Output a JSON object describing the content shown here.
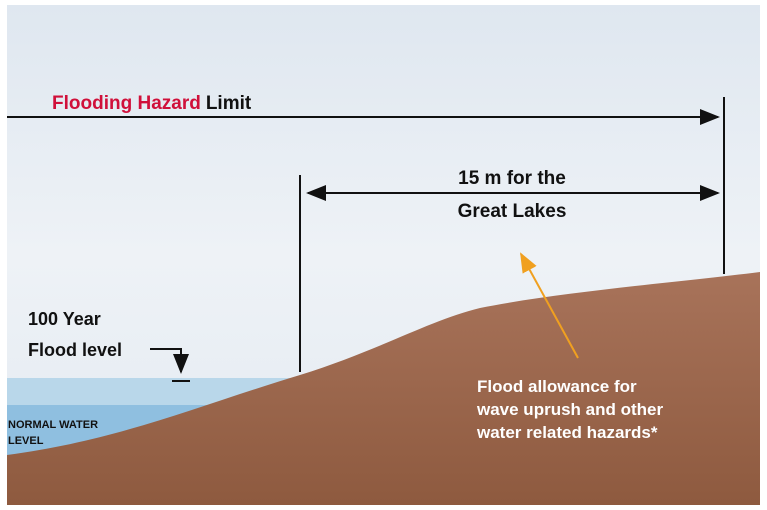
{
  "title": {
    "highlight": "Flooding Hazard",
    "rest": "Limit"
  },
  "setback": {
    "lines": [
      "15 m for the",
      "Great Lakes"
    ]
  },
  "flood_level": {
    "lines": [
      "100 Year",
      "Flood level"
    ]
  },
  "normal_water": {
    "lines": [
      "NORMAL WATER",
      "LEVEL"
    ]
  },
  "allowance": {
    "lines": [
      "Flood allowance for",
      "wave uprush and other",
      "water related hazards*"
    ]
  }
}
